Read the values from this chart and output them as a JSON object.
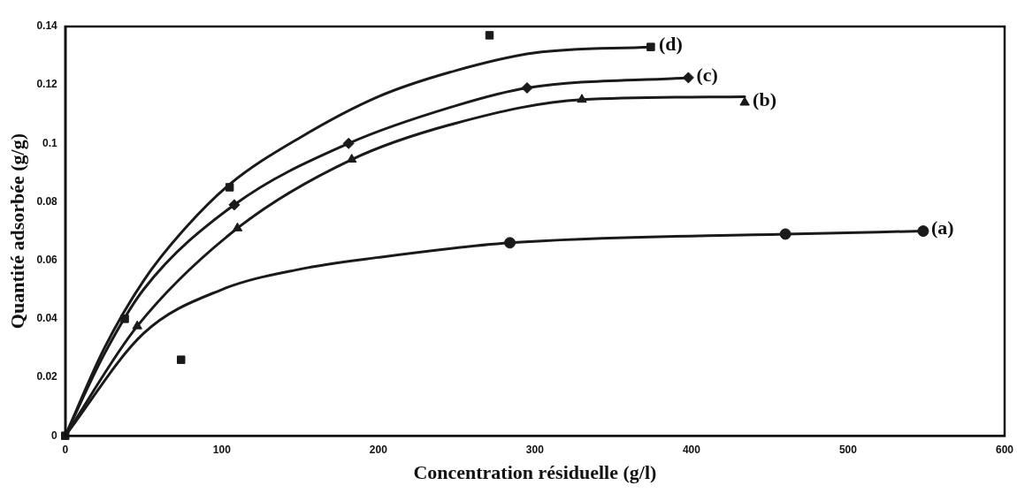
{
  "chart_data": {
    "type": "scatter",
    "xlabel": "Concentration résiduelle (g/l)",
    "ylabel": "Quantité adsorbée (g/g)",
    "xlim": [
      0,
      600
    ],
    "xticks": [
      0,
      100,
      200,
      300,
      400,
      500,
      600
    ],
    "ylim": [
      0,
      0.14
    ],
    "yticks": [
      0,
      0.02,
      0.04,
      0.06,
      0.08,
      0.1,
      0.12,
      0.14
    ],
    "grid": false,
    "legend": false,
    "series": [
      {
        "name": "(a)",
        "marker": "circle",
        "color": "#1a1a1a",
        "x": [
          284,
          460,
          548
        ],
        "values": [
          0.066,
          0.069,
          0.07
        ]
      },
      {
        "name": "(b)",
        "marker": "triangle",
        "color": "#1a1a1a",
        "x": [
          46,
          110,
          183,
          330,
          434
        ],
        "values": [
          0.0375,
          0.071,
          0.0945,
          0.115,
          0.114
        ]
      },
      {
        "name": "(c)",
        "marker": "diamond",
        "color": "#1a1a1a",
        "x": [
          108,
          181,
          295,
          398
        ],
        "values": [
          0.079,
          0.1,
          0.119,
          0.1225
        ]
      },
      {
        "name": "(d)",
        "marker": "square",
        "color": "#1a1a1a",
        "x": [
          0,
          38,
          74,
          105,
          271,
          374
        ],
        "values": [
          0,
          0.04,
          0.026,
          0.085,
          0.137,
          0.133
        ]
      },
      {
        "type": "line",
        "marker": "none",
        "color": "#1a1a1a",
        "x": [
          0,
          50,
          100,
          150,
          200,
          284,
          460,
          548
        ],
        "values": [
          0,
          0.035,
          0.05,
          0.057,
          0.061,
          0.066,
          0.069,
          0.07
        ]
      },
      {
        "type": "line",
        "marker": "none",
        "color": "#1a1a1a",
        "x": [
          0,
          46,
          110,
          183,
          250,
          330,
          434
        ],
        "values": [
          0,
          0.0375,
          0.071,
          0.0945,
          0.107,
          0.115,
          0.116
        ]
      },
      {
        "type": "line",
        "marker": "none",
        "color": "#1a1a1a",
        "x": [
          0,
          25,
          50,
          108,
          181,
          250,
          295,
          398
        ],
        "values": [
          0,
          0.028,
          0.05,
          0.079,
          0.1,
          0.113,
          0.119,
          0.1225
        ]
      },
      {
        "type": "line",
        "marker": "none",
        "color": "#1a1a1a",
        "x": [
          0,
          25,
          50,
          75,
          105,
          150,
          200,
          250,
          300,
          374
        ],
        "values": [
          0,
          0.03,
          0.053,
          0.07,
          0.086,
          0.102,
          0.116,
          0.125,
          0.131,
          0.133
        ]
      }
    ]
  }
}
